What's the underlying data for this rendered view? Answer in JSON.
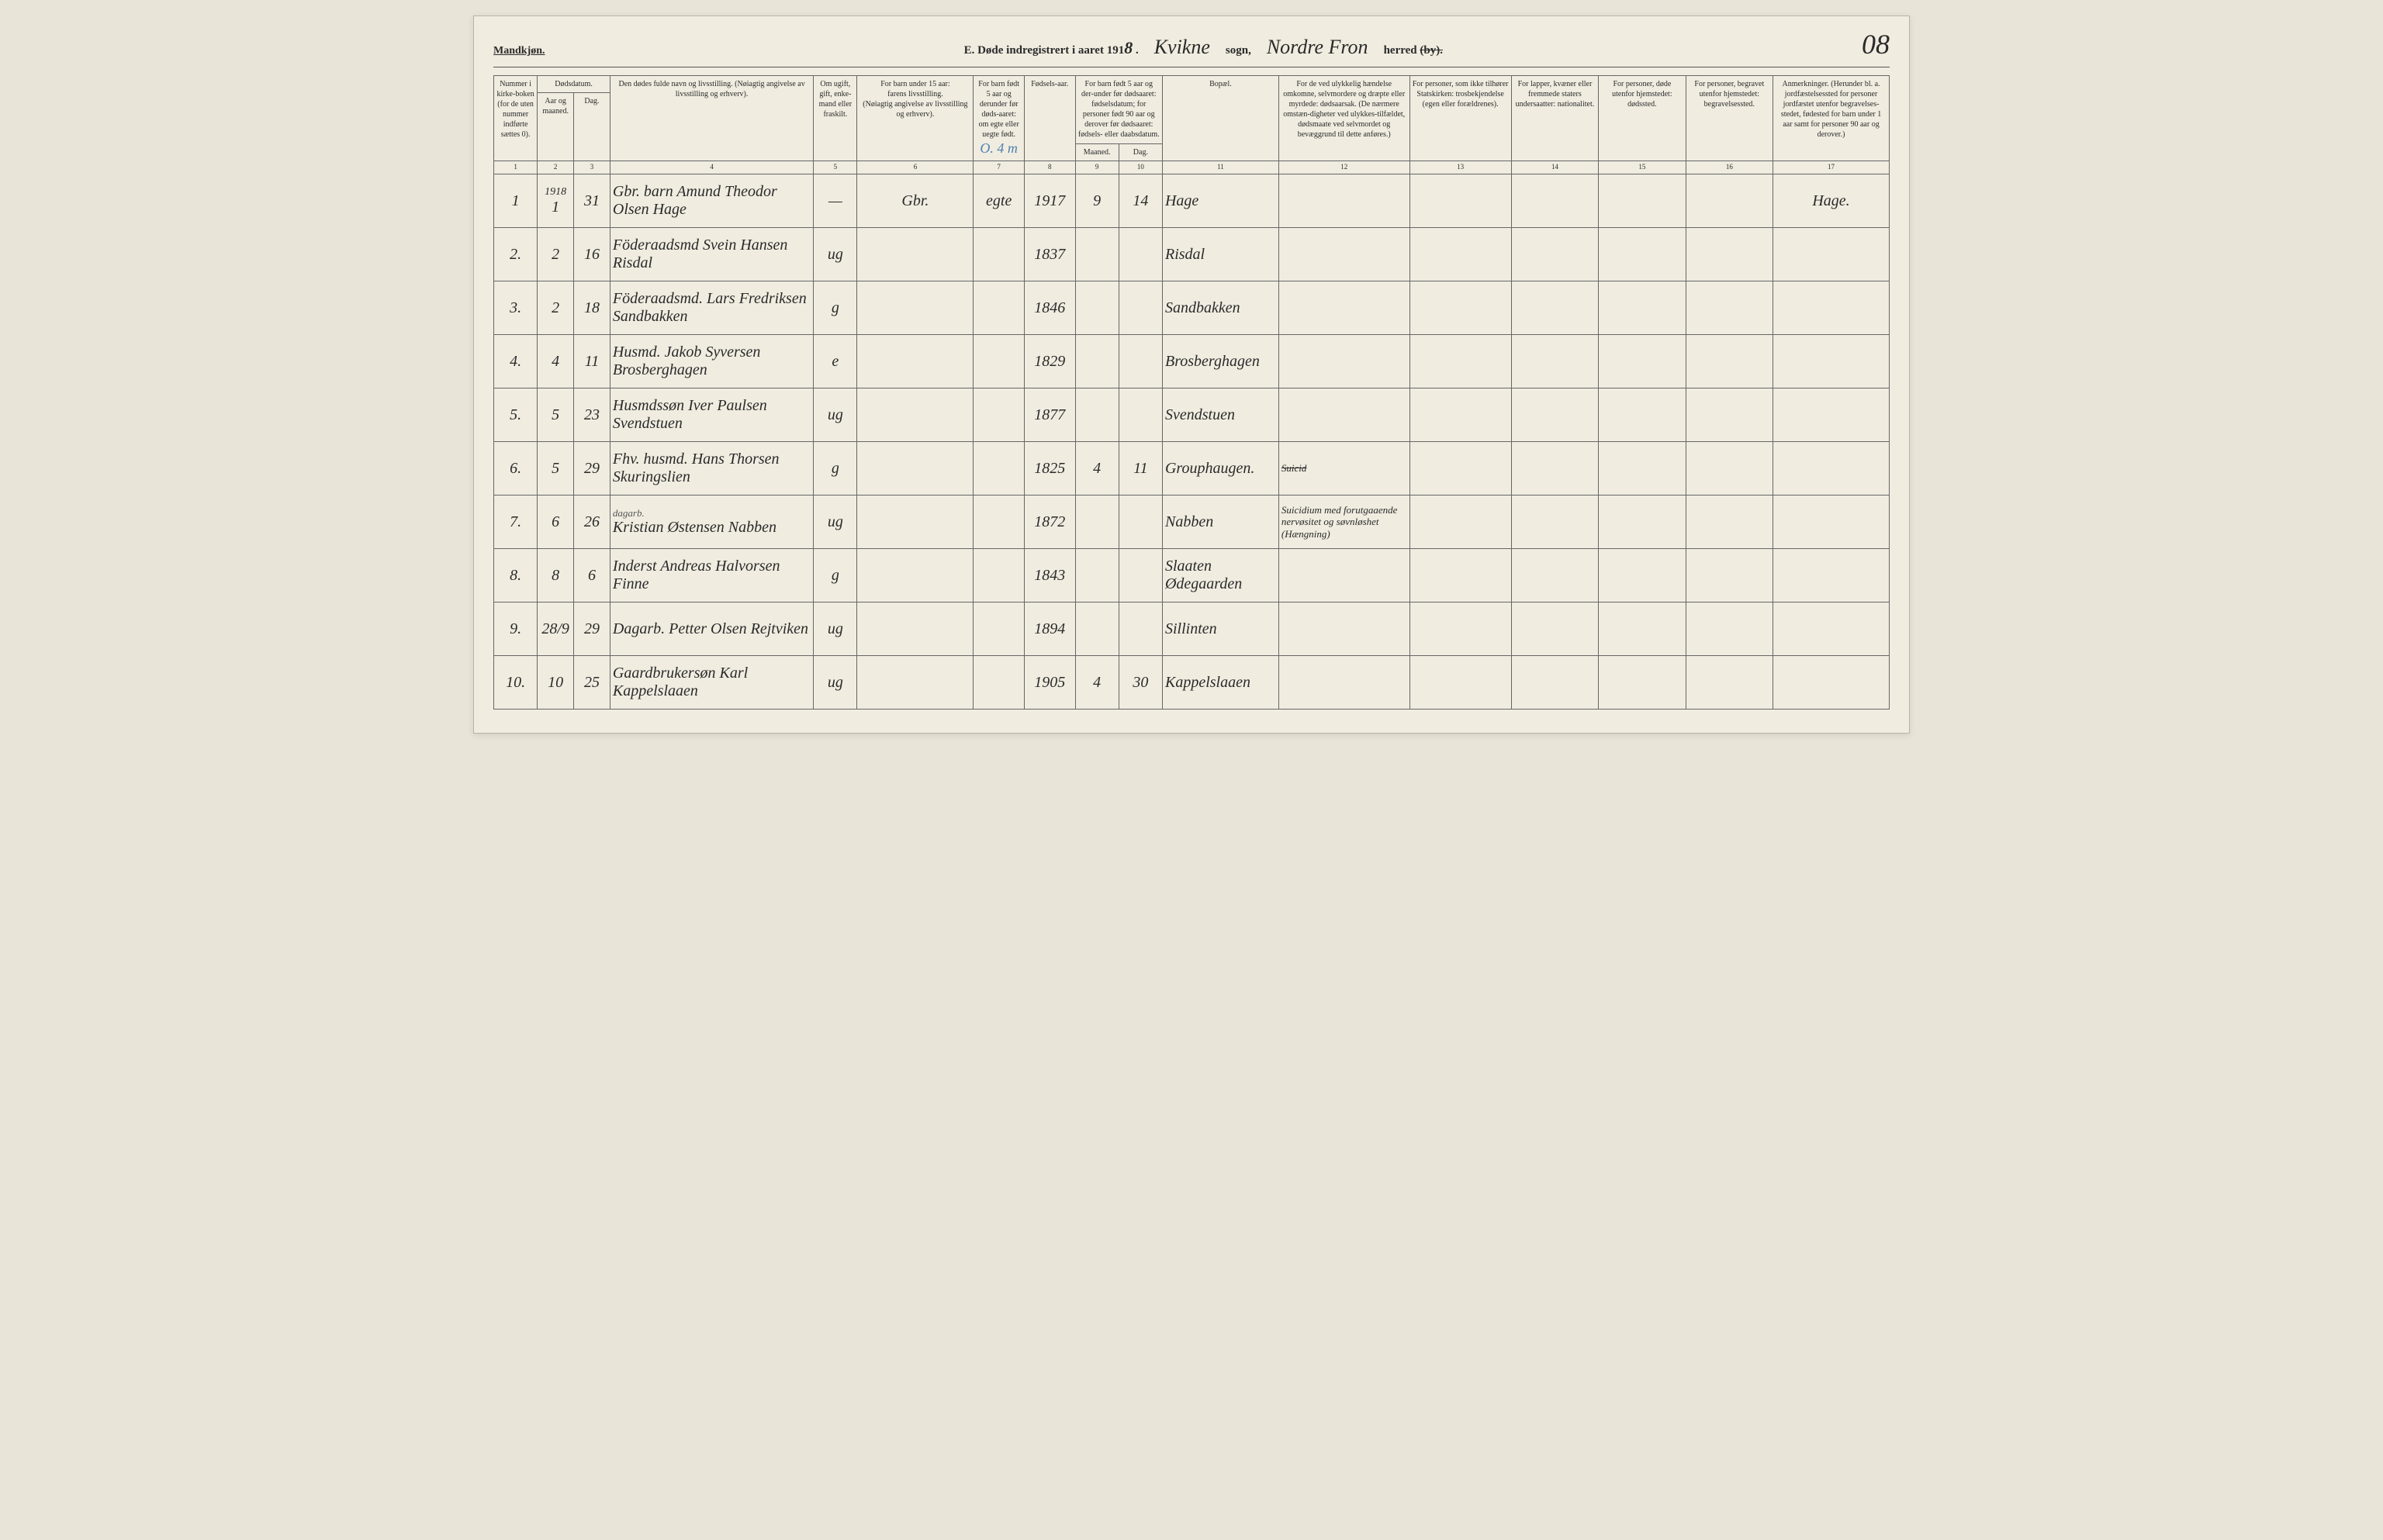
{
  "header": {
    "gender": "Mandkjøn.",
    "title_prefix": "E.  Døde indregistrert i aaret 191",
    "year_suffix": "8",
    "parish_handwritten": "Kvikne",
    "sogn_label": "sogn,",
    "district_handwritten": "Nordre Fron",
    "herred_label": "herred",
    "by_label": "(by).",
    "page_number": "08"
  },
  "columns": {
    "c1": "Nummer i kirke-boken (for de uten nummer indførte sættes 0).",
    "c2_3a": "Dødsdatum.",
    "c2": "Aar og maaned.",
    "c3": "Dag.",
    "c4": "Den dødes fulde navn og livsstilling. (Nøiagtig angivelse av livsstilling og erhverv).",
    "c5": "Om ugift, gift, enke-mand eller fraskilt.",
    "c6a": "For barn under 15 aar:",
    "c6b": "farens livsstilling.",
    "c6c": "(Nøiagtig angivelse av livsstilling og erhverv).",
    "c7": "For barn født 5 aar og derunder før døds-aaret: om egte eller uegte født.",
    "c8": "Fødsels-aar.",
    "c9_10a": "For barn født 5 aar og der-under før dødsaaret: fødselsdatum; for personer født 90 aar og derover før dødsaaret: fødsels- eller daabsdatum.",
    "c9": "Maaned.",
    "c10": "Dag.",
    "c11": "Bopæl.",
    "c12": "For de ved ulykkelig hændelse omkomne, selvmordere og dræpte eller myrdede: dødsaarsak. (De nærmere omstæn-digheter ved ulykkes-tilfældet, dødsmaate ved selvmordet og bevæggrund til dette anføres.)",
    "c13": "For personer, som ikke tilhører Statskirken: trosbekjendelse (egen eller forældrenes).",
    "c14": "For lapper, kvæner eller fremmede staters undersaatter: nationalitet.",
    "c15": "For personer, døde utenfor hjemstedet: dødssted.",
    "c16": "For personer, begravet utenfor hjemstedet: begravelsessted.",
    "c17": "Anmerkninger. (Herunder bl. a. jordfæstelsessted for personer jordfæstet utenfor begravelses-stedet, fødested for barn under 1 aar samt for personer 90 aar og derover.)"
  },
  "colnums": [
    "1",
    "2",
    "3",
    "4",
    "5",
    "6",
    "7",
    "8",
    "9",
    "10",
    "11",
    "12",
    "13",
    "14",
    "15",
    "16",
    "17"
  ],
  "annotation_blue": "O. 4 m",
  "rows": [
    {
      "num": "1",
      "year": "1918",
      "month": "1",
      "day": "31",
      "name": "Gbr. barn Amund Theodor Olsen Hage",
      "status": "—",
      "father": "Gbr.",
      "legit": "egte",
      "birthyr": "1917",
      "bm": "9",
      "bd": "14",
      "place": "Hage",
      "c12": "",
      "c17": "Hage."
    },
    {
      "num": "2.",
      "month": "2",
      "day": "16",
      "name": "Föderaadsmd Svein Hansen Risdal",
      "status": "ug",
      "father": "",
      "legit": "",
      "birthyr": "1837",
      "bm": "",
      "bd": "",
      "place": "Risdal",
      "c12": "",
      "c17": ""
    },
    {
      "num": "3.",
      "month": "2",
      "day": "18",
      "name": "Föderaadsmd. Lars Fredriksen Sandbakken",
      "status": "g",
      "father": "",
      "legit": "",
      "birthyr": "1846",
      "bm": "",
      "bd": "",
      "place": "Sandbakken",
      "c12": "",
      "c17": ""
    },
    {
      "num": "4.",
      "month": "4",
      "day": "11",
      "name": "Husmd. Jakob Syversen Brosberghagen",
      "status": "e",
      "father": "",
      "legit": "",
      "birthyr": "1829",
      "bm": "",
      "bd": "",
      "place": "Brosberghagen",
      "c12": "",
      "c17": ""
    },
    {
      "num": "5.",
      "month": "5",
      "day": "23",
      "name": "Husmdssøn Iver Paulsen Svendstuen",
      "status": "ug",
      "father": "",
      "legit": "",
      "birthyr": "1877",
      "bm": "",
      "bd": "",
      "place": "Svendstuen",
      "c12": "",
      "c17": ""
    },
    {
      "num": "6.",
      "month": "5",
      "day": "29",
      "name": "Fhv. husmd. Hans Thorsen Skuringslien",
      "status": "g",
      "father": "",
      "legit": "",
      "birthyr": "1825",
      "bm": "4",
      "bd": "11",
      "place": "Grouphaugen.",
      "c12strike": "Suicid",
      "c12": "",
      "c17": ""
    },
    {
      "num": "7.",
      "month": "6",
      "day": "26",
      "nameAnnot": "dagarb.",
      "name": "Kristian Østensen Nabben",
      "status": "ug",
      "father": "",
      "legit": "",
      "birthyr": "1872",
      "bm": "",
      "bd": "",
      "place": "Nabben",
      "c12": "Suicidium med forutgaaende nervøsitet og søvnløshet (Hængning)",
      "c17": ""
    },
    {
      "num": "8.",
      "month": "8",
      "day": "6",
      "name": "Inderst Andreas Halvorsen Finne",
      "status": "g",
      "father": "",
      "legit": "",
      "birthyr": "1843",
      "bm": "",
      "bd": "",
      "place": "Slaaten Ødegaarden",
      "c12": "",
      "c17": ""
    },
    {
      "num": "9.",
      "month": "28/9",
      "day": "29",
      "name": "Dagarb. Petter Olsen Rejtviken",
      "status": "ug",
      "father": "",
      "legit": "",
      "birthyr": "1894",
      "bm": "",
      "bd": "",
      "place": "Sillinten",
      "c12": "",
      "c17": ""
    },
    {
      "num": "10.",
      "month": "10",
      "day": "25",
      "name": "Gaardbrukersøn Karl Kappelslaaen",
      "status": "ug",
      "father": "",
      "legit": "",
      "birthyr": "1905",
      "bm": "4",
      "bd": "30",
      "place": "Kappelslaaen",
      "c12": "",
      "c17": ""
    }
  ]
}
